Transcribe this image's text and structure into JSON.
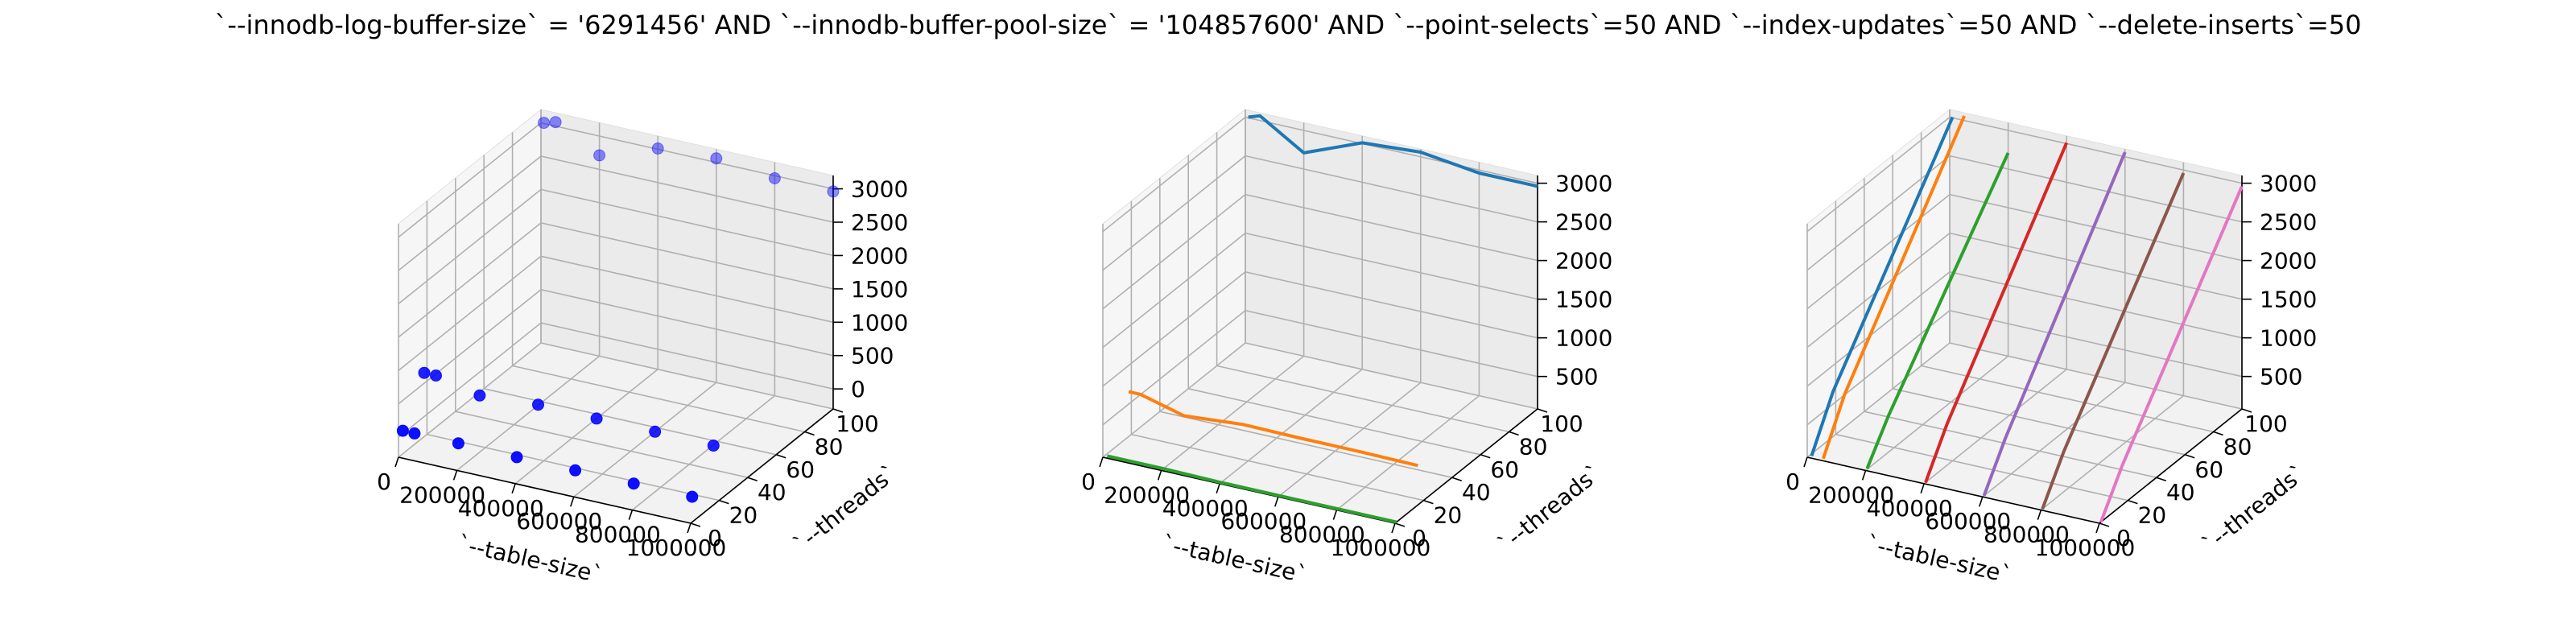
{
  "figure_title": "`--innodb-log-buffer-size` = '6291456' AND `--innodb-buffer-pool-size` = '104857600'  AND `--point-selects`=50 AND `--index-updates`=50 AND `--delete-inserts`=50",
  "chart_data": [
    {
      "type": "scatter",
      "projection": "3d",
      "xlabel": "`--table-size`",
      "ylabel": "`--threads`",
      "zlabel": "",
      "xlim": [
        0,
        1000000
      ],
      "ylim": [
        0,
        100
      ],
      "zlim": [
        -300,
        3200
      ],
      "x_ticks": [
        "0",
        "200000",
        "400000",
        "600000",
        "800000",
        "1000000"
      ],
      "y_ticks": [
        "0",
        "20",
        "40",
        "60",
        "80",
        "100"
      ],
      "z_ticks": [
        "0",
        "500",
        "1000",
        "1500",
        "2000",
        "2500",
        "3000"
      ],
      "colors": {
        "points": "#0000ff"
      },
      "series": [
        {
          "x": [
            10000,
            50000,
            200000,
            400000,
            600000,
            800000,
            1000000
          ],
          "y": [
            1,
            1,
            1,
            1,
            1,
            1,
            1
          ],
          "z": [
            90,
            90,
            90,
            80,
            80,
            80,
            80
          ]
        },
        {
          "x": [
            10000,
            50000,
            200000,
            400000,
            600000,
            800000,
            1000000
          ],
          "y": [
            16,
            16,
            16,
            16,
            16,
            16,
            16
          ],
          "z": [
            700,
            700,
            550,
            610,
            600,
            600,
            590
          ]
        },
        {
          "x": [
            10000,
            50000,
            200000,
            400000,
            600000,
            800000,
            1000000
          ],
          "y": [
            100,
            100,
            100,
            100,
            100,
            100,
            100
          ],
          "z": [
            3010,
            3060,
            2710,
            3010,
            3060,
            2960,
            2960
          ]
        }
      ]
    },
    {
      "type": "line",
      "projection": "3d",
      "xlabel": "`--table-size`",
      "ylabel": "`--threads`",
      "zlabel": "",
      "xlim": [
        0,
        1000000
      ],
      "ylim": [
        0,
        100
      ],
      "zlim": [
        80,
        3100
      ],
      "x_ticks": [
        "0",
        "200000",
        "400000",
        "600000",
        "800000",
        "1000000"
      ],
      "y_ticks": [
        "0",
        "20",
        "40",
        "60",
        "80",
        "100"
      ],
      "z_ticks": [
        "500",
        "1000",
        "1500",
        "2000",
        "2500",
        "3000"
      ],
      "series": [
        {
          "color": "#1f77b4",
          "x": [
            10000,
            50000,
            200000,
            400000,
            600000,
            800000,
            1000000
          ],
          "y": [
            100,
            100,
            100,
            100,
            100,
            100,
            100
          ],
          "z": [
            3010,
            3060,
            2710,
            3010,
            3060,
            2960,
            2960
          ]
        },
        {
          "color": "#ff7f0e",
          "x": [
            10000,
            50000,
            200000,
            400000,
            600000,
            800000,
            1000000
          ],
          "y": [
            16,
            16,
            16,
            16,
            16,
            16,
            16
          ],
          "z": [
            700,
            700,
            550,
            610,
            600,
            600,
            590
          ]
        },
        {
          "color": "#2ca02c",
          "x": [
            10000,
            50000,
            200000,
            400000,
            600000,
            800000,
            1000000
          ],
          "y": [
            1,
            1,
            1,
            1,
            1,
            1,
            1
          ],
          "z": [
            90,
            90,
            90,
            80,
            80,
            80,
            80
          ]
        }
      ]
    },
    {
      "type": "line",
      "projection": "3d",
      "xlabel": "`--table-size`",
      "ylabel": "`--threads`",
      "zlabel": "",
      "xlim": [
        0,
        1000000
      ],
      "ylim": [
        0,
        100
      ],
      "zlim": [
        80,
        3100
      ],
      "x_ticks": [
        "0",
        "200000",
        "400000",
        "600000",
        "800000",
        "1000000"
      ],
      "y_ticks": [
        "0",
        "20",
        "40",
        "60",
        "80",
        "100"
      ],
      "z_ticks": [
        "500",
        "1000",
        "1500",
        "2000",
        "2500",
        "3000"
      ],
      "series": [
        {
          "color": "#1f77b4",
          "x": [
            10000,
            10000,
            10000
          ],
          "y": [
            1,
            16,
            100
          ],
          "z": [
            90,
            700,
            3010
          ]
        },
        {
          "color": "#ff7f0e",
          "x": [
            50000,
            50000,
            50000
          ],
          "y": [
            1,
            16,
            100
          ],
          "z": [
            90,
            700,
            3060
          ]
        },
        {
          "color": "#2ca02c",
          "x": [
            200000,
            200000,
            200000
          ],
          "y": [
            1,
            16,
            100
          ],
          "z": [
            90,
            550,
            2710
          ]
        },
        {
          "color": "#d62728",
          "x": [
            400000,
            400000,
            400000
          ],
          "y": [
            1,
            16,
            100
          ],
          "z": [
            80,
            610,
            3010
          ]
        },
        {
          "color": "#9467bd",
          "x": [
            600000,
            600000,
            600000
          ],
          "y": [
            1,
            16,
            100
          ],
          "z": [
            80,
            600,
            3060
          ]
        },
        {
          "color": "#8c564b",
          "x": [
            800000,
            800000,
            800000
          ],
          "y": [
            1,
            16,
            100
          ],
          "z": [
            80,
            600,
            2960
          ]
        },
        {
          "color": "#e377c2",
          "x": [
            1000000,
            1000000,
            1000000
          ],
          "y": [
            1,
            16,
            100
          ],
          "z": [
            80,
            590,
            2960
          ]
        }
      ]
    }
  ]
}
